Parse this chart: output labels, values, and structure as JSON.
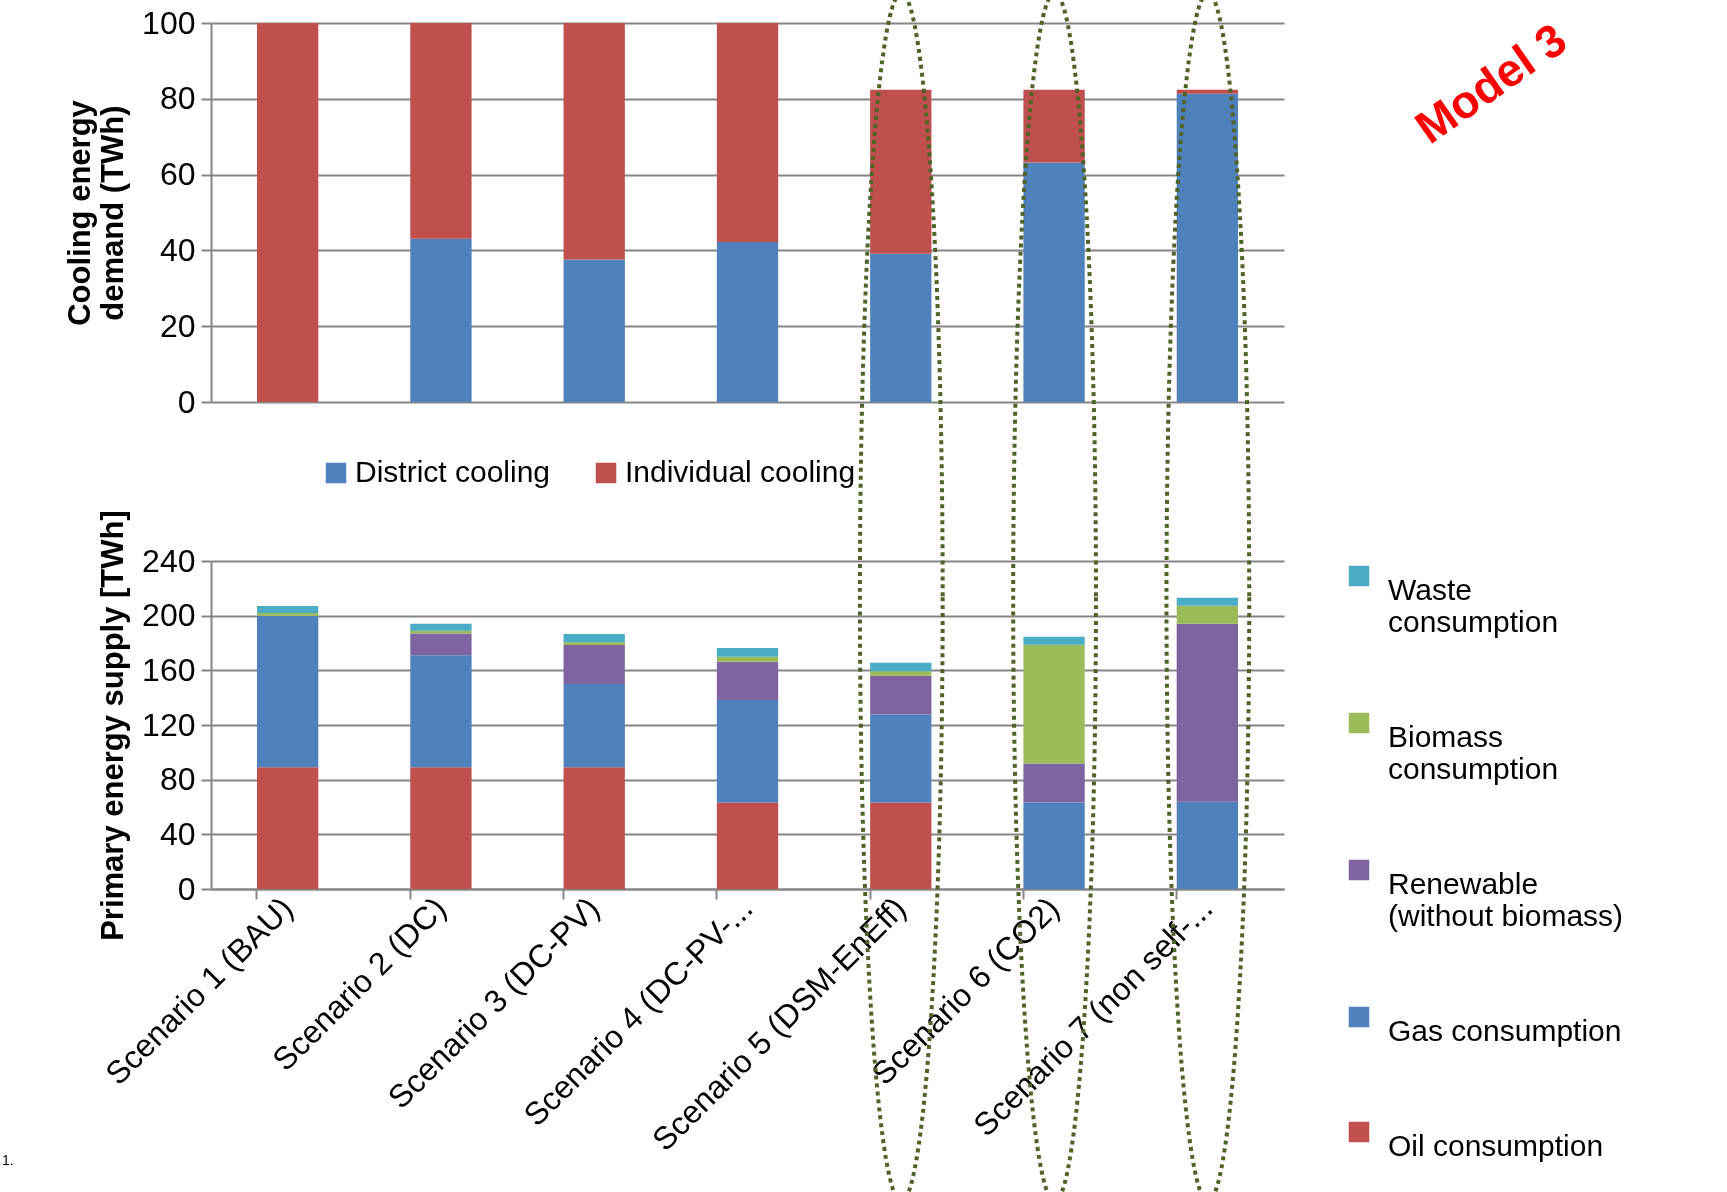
{
  "chart_data": [
    {
      "type": "bar",
      "stacked": true,
      "ylabel": "Cooling energy demand (TWh)",
      "categories": [
        "Scenario 1 (BAU)",
        "Scenario 2 (DC)",
        "Scenario 3 (DC-PV)",
        "Scenario 4 (DC-PV-...",
        "Scenario 5 (DSM-EnEff)",
        "Scenario 6 (CO2)",
        "Scenario 7 (non self-..."
      ],
      "series": [
        {
          "name": "District cooling",
          "color": "#4f81bd",
          "values": [
            0,
            43.1,
            37.6,
            42.2,
            39.1,
            63.2,
            81.3
          ]
        },
        {
          "name": "Individual cooling",
          "color": "#c0504d",
          "values": [
            100,
            56.9,
            62.4,
            57.8,
            43.3,
            19.2,
            1.1
          ]
        }
      ],
      "ylim": [
        0,
        100
      ],
      "yticks": [
        0,
        20,
        40,
        60,
        80,
        100
      ],
      "grid": "y",
      "legend": "bottom",
      "tick_labels": "y",
      "annotations": [
        "Model 3"
      ]
    },
    {
      "type": "bar",
      "stacked": true,
      "ylabel": "Primary energy supply [TWh]",
      "categories": [
        "Scenario 1 (BAU)",
        "Scenario 2 (DC)",
        "Scenario 3 (DC-PV)",
        "Scenario 4 (DC-PV-...",
        "Scenario 5 (DSM-EnEff)",
        "Scenario 6 (CO2)",
        "Scenario 7 (non self-..."
      ],
      "series": [
        {
          "name": "Oil consumption",
          "color": "#c0504d",
          "values": [
            89,
            89,
            89,
            63.3,
            63.3,
            0,
            0
          ]
        },
        {
          "name": "Gas consumption",
          "color": "#4f81bd",
          "values": [
            111,
            82,
            61,
            75,
            64.3,
            63.3,
            63.8
          ]
        },
        {
          "name": "Renewable (without biomass)",
          "color": "#8064a2",
          "values": [
            0,
            16,
            28.5,
            28,
            28.5,
            28.5,
            130.3
          ]
        },
        {
          "name": "Biomass consumption",
          "color": "#9bbb59",
          "values": [
            2,
            2,
            2,
            3.7,
            3.2,
            87,
            13.2
          ]
        },
        {
          "name": "Waste consumption",
          "color": "#4bacc6",
          "values": [
            5,
            5,
            6,
            6.4,
            6.3,
            5.8,
            5.8
          ]
        }
      ],
      "ylim": [
        0,
        240
      ],
      "yticks": [
        0,
        40,
        80,
        120,
        160,
        200,
        240
      ],
      "grid": "y",
      "legend": "right",
      "annotations": [
        "1."
      ]
    }
  ]
}
